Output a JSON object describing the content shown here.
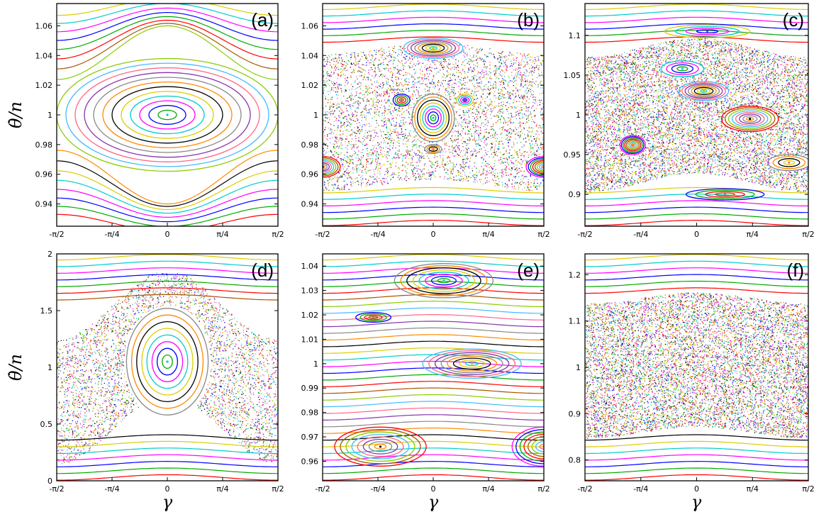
{
  "figure": {
    "x_axis_title": "γ",
    "y_axis_title": "θ̇/n"
  },
  "palette": [
    "#ff0000",
    "#00aa00",
    "#0000ff",
    "#ff00ff",
    "#00cccc",
    "#ddcc00",
    "#000000",
    "#ff8800",
    "#888888",
    "#8833aa",
    "#ff6688",
    "#44bbff",
    "#88cc00",
    "#aa5500"
  ],
  "chart_data": [
    {
      "type": "scatter",
      "label": "(a)",
      "x_ticks": [
        "-π/2",
        "-π/4",
        "0",
        "π/4",
        "π/2"
      ],
      "xlim": [
        -1.5708,
        1.5708
      ],
      "ylim": [
        0.925,
        1.075
      ],
      "y_ticks": [
        0.94,
        0.96,
        0.98,
        1,
        1.02,
        1.04,
        1.06
      ],
      "y_tick_labels": [
        "0.94",
        "0.96",
        "0.98",
        "1",
        "1.02",
        "1.04",
        "1.06"
      ],
      "regime": "regular",
      "islands": [
        {
          "x": 0,
          "y": 1.0,
          "rx": 1.5708,
          "ry": 0.038
        }
      ],
      "chaos": null
    },
    {
      "type": "scatter",
      "label": "(b)",
      "x_ticks": [
        "-π/2",
        "-π/4",
        "0",
        "π/4",
        "π/2"
      ],
      "xlim": [
        -1.5708,
        1.5708
      ],
      "ylim": [
        0.925,
        1.075
      ],
      "y_ticks": [
        0.94,
        0.96,
        0.98,
        1,
        1.02,
        1.04,
        1.06
      ],
      "y_tick_labels": [
        "0.94",
        "0.96",
        "0.98",
        "1",
        "1.02",
        "1.04",
        "1.06"
      ],
      "regime": "mixed",
      "islands": [
        {
          "x": 0,
          "y": 0.998,
          "rx": 0.3,
          "ry": 0.016
        },
        {
          "x": 0,
          "y": 1.045,
          "rx": 0.42,
          "ry": 0.007
        },
        {
          "x": -1.57,
          "y": 0.965,
          "rx": 0.25,
          "ry": 0.007
        },
        {
          "x": 1.57,
          "y": 0.965,
          "rx": 0.25,
          "ry": 0.007
        },
        {
          "x": -0.45,
          "y": 1.01,
          "rx": 0.12,
          "ry": 0.004
        },
        {
          "x": 0.45,
          "y": 1.01,
          "rx": 0.12,
          "ry": 0.004
        },
        {
          "x": 0,
          "y": 0.977,
          "rx": 0.12,
          "ry": 0.003
        }
      ],
      "chaos": {
        "y_center": 0.999,
        "half_height": 0.046,
        "amplitude": 0.004
      }
    },
    {
      "type": "scatter",
      "label": "(c)",
      "x_ticks": [
        "-π/2",
        "-π/4",
        "0",
        "π/4",
        "π/2"
      ],
      "xlim": [
        -1.5708,
        1.5708
      ],
      "ylim": [
        0.86,
        1.14
      ],
      "y_ticks": [
        0.9,
        0.95,
        1,
        1.05,
        1.1
      ],
      "y_tick_labels": [
        "0.9",
        "0.95",
        "1",
        "1.05",
        "1.1"
      ],
      "regime": "mostly-chaotic",
      "islands": [
        {
          "x": -0.2,
          "y": 1.058,
          "rx": 0.3,
          "ry": 0.01
        },
        {
          "x": 0.1,
          "y": 1.03,
          "rx": 0.35,
          "ry": 0.012
        },
        {
          "x": 0.75,
          "y": 0.995,
          "rx": 0.4,
          "ry": 0.016
        },
        {
          "x": -0.9,
          "y": 0.962,
          "rx": 0.18,
          "ry": 0.012
        },
        {
          "x": 0.4,
          "y": 0.9,
          "rx": 0.55,
          "ry": 0.007
        },
        {
          "x": 0.15,
          "y": 1.105,
          "rx": 0.6,
          "ry": 0.008
        },
        {
          "x": 1.3,
          "y": 0.94,
          "rx": 0.3,
          "ry": 0.01
        }
      ],
      "chaos": {
        "y_center": 1.0,
        "half_height": 0.085,
        "amplitude": 0.012
      }
    },
    {
      "type": "scatter",
      "label": "(d)",
      "x_ticks": [
        "-π/2",
        "-π/4",
        "0",
        "π/4",
        "π/2"
      ],
      "xlim": [
        -1.5708,
        1.5708
      ],
      "ylim": [
        0,
        2
      ],
      "y_ticks": [
        0,
        0.5,
        1,
        1.5,
        2
      ],
      "y_tick_labels": [
        "0",
        "0.5",
        "1",
        "1.5",
        "2"
      ],
      "regime": "mixed",
      "islands": [
        {
          "x": 0,
          "y": 1.05,
          "rx": 0.58,
          "ry": 0.47
        }
      ],
      "chaos": {
        "y_center": 1.0,
        "half_height": 0.55,
        "amplitude": 0.3,
        "ring": true
      }
    },
    {
      "type": "scatter",
      "label": "(e)",
      "x_ticks": [
        "-π/2",
        "-π/4",
        "0",
        "π/4",
        "π/2"
      ],
      "xlim": [
        -1.5708,
        1.5708
      ],
      "ylim": [
        0.952,
        1.045
      ],
      "y_ticks": [
        0.96,
        0.97,
        0.98,
        0.99,
        1,
        1.01,
        1.02,
        1.03,
        1.04
      ],
      "y_tick_labels": [
        "0.96",
        "0.97",
        "0.98",
        "0.99",
        "1",
        "1.01",
        "1.02",
        "1.03",
        "1.04"
      ],
      "regime": "regular",
      "islands": [
        {
          "x": 0.15,
          "y": 1.034,
          "rx": 0.7,
          "ry": 0.007
        },
        {
          "x": 0.55,
          "y": 1.0,
          "rx": 0.7,
          "ry": 0.006
        },
        {
          "x": -0.75,
          "y": 0.966,
          "rx": 0.65,
          "ry": 0.008
        },
        {
          "x": 1.57,
          "y": 0.966,
          "rx": 0.45,
          "ry": 0.008
        },
        {
          "x": -0.85,
          "y": 1.019,
          "rx": 0.25,
          "ry": 0.002
        }
      ],
      "chaos": null
    },
    {
      "type": "scatter",
      "label": "(f)",
      "x_ticks": [
        "-π/2",
        "-π/4",
        "0",
        "π/4",
        "π/2"
      ],
      "xlim": [
        -1.5708,
        1.5708
      ],
      "ylim": [
        0.755,
        1.245
      ],
      "y_ticks": [
        0.8,
        0.9,
        1,
        1.1,
        1.2
      ],
      "y_tick_labels": [
        "0.8",
        "0.9",
        "1",
        "1.1",
        "1.2"
      ],
      "regime": "mostly-chaotic",
      "islands": [],
      "chaos": {
        "y_center": 1.005,
        "half_height": 0.145,
        "amplitude": 0.012
      }
    }
  ]
}
